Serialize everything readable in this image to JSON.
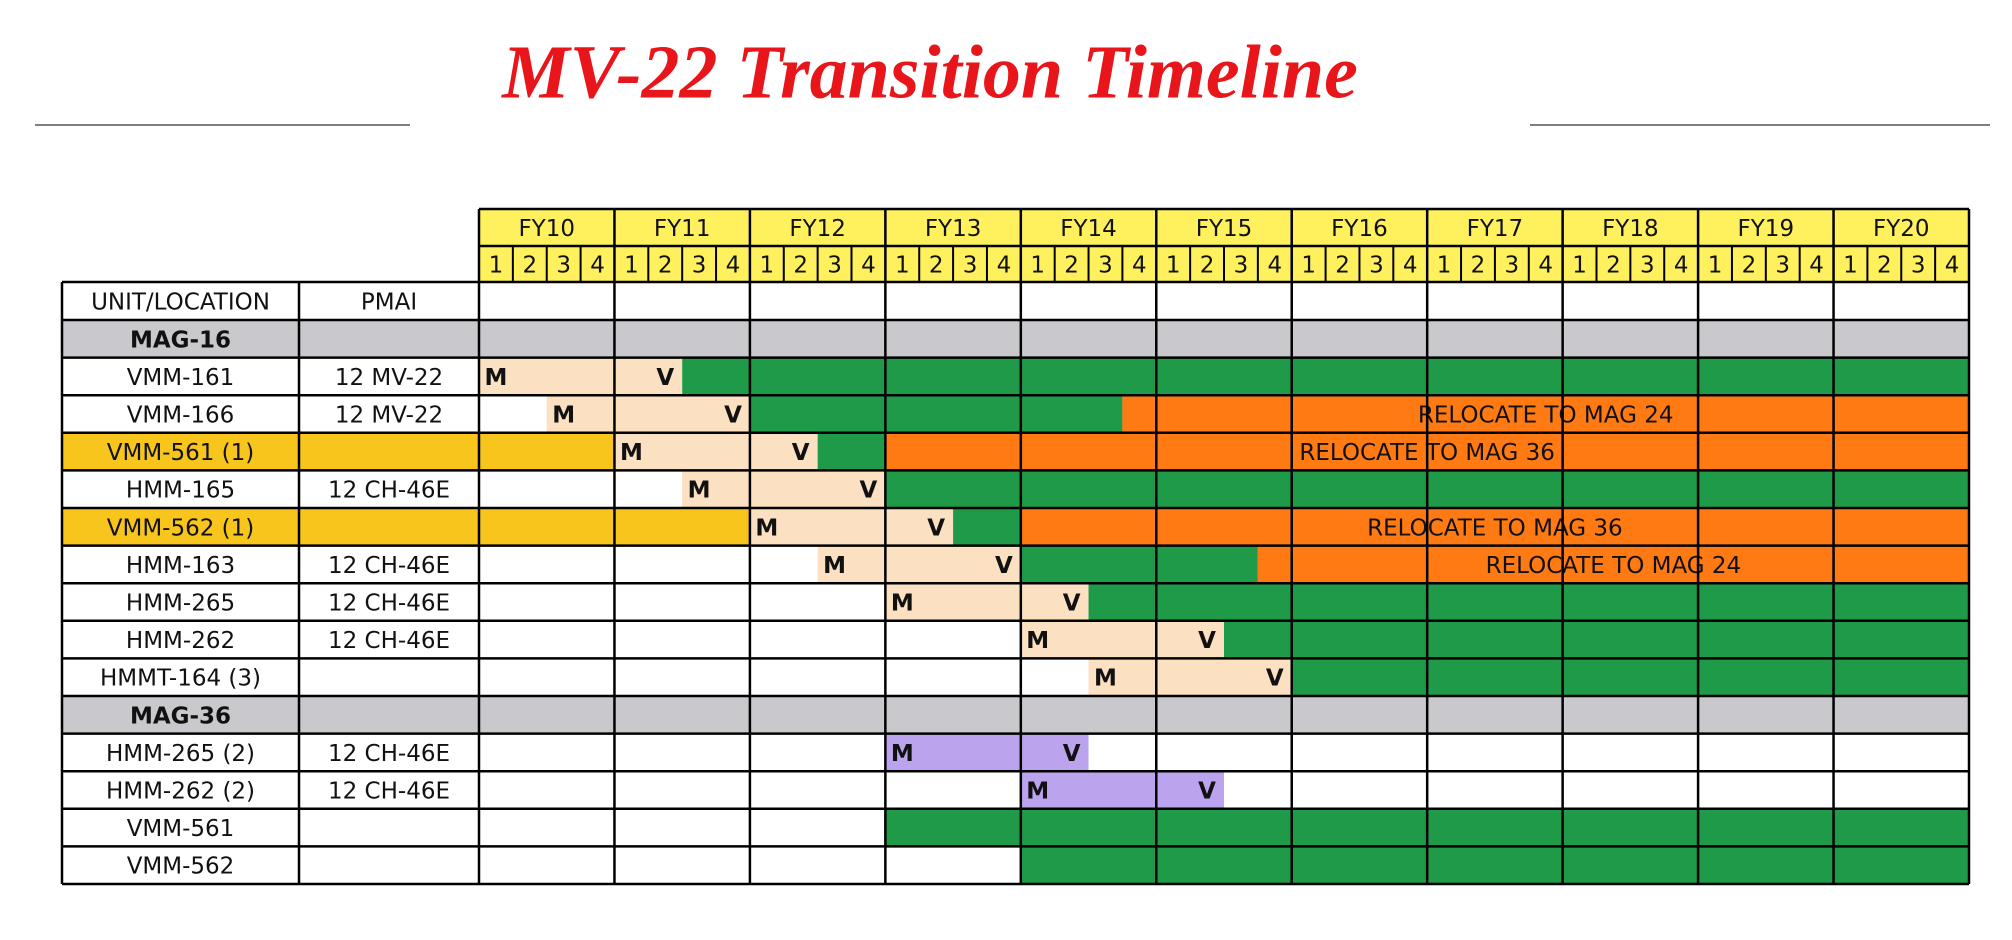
{
  "title": "MV-22 Transition Timeline",
  "header": {
    "unit": "UNIT/LOCATION",
    "pmai": "PMAI"
  },
  "fiscal_years": [
    "FY10",
    "FY11",
    "FY12",
    "FY13",
    "FY14",
    "FY15",
    "FY16",
    "FY17",
    "FY18",
    "FY19",
    "FY20"
  ],
  "quarters": [
    "1",
    "2",
    "3",
    "4"
  ],
  "rows": [
    {
      "unit": "MAG-16",
      "color": "#c9c9cd"
    },
    {
      "unit": "VMM-161",
      "pmai": "12 MV-22",
      "segments": [
        {
          "start": 0,
          "end": 5,
          "color": "#fbe0c2"
        },
        {
          "start": 6,
          "end": 43,
          "color": "#1f9a48"
        }
      ],
      "labels": [
        {
          "quarter": 0,
          "text": "M"
        },
        {
          "quarter": 5,
          "text": "V"
        }
      ]
    },
    {
      "unit": "VMM-166",
      "pmai": "12 MV-22",
      "segments": [
        {
          "start": 2,
          "end": 7,
          "color": "#fbe0c2"
        },
        {
          "start": 8,
          "end": 18,
          "color": "#1f9a48"
        },
        {
          "start": 19,
          "end": 43,
          "color": "#ff7a12",
          "text": "RELOCATE TO MAG 24"
        }
      ],
      "labels": [
        {
          "quarter": 2,
          "text": "M"
        },
        {
          "quarter": 7,
          "text": "V"
        }
      ]
    },
    {
      "unit": "VMM-561 (1)",
      "highlight": "#f8c51c",
      "segments": [
        {
          "start": 0,
          "end": 3,
          "color": "#f8c51c"
        },
        {
          "start": 4,
          "end": 9,
          "color": "#fbe0c2"
        },
        {
          "start": 10,
          "end": 11,
          "color": "#1f9a48"
        },
        {
          "start": 12,
          "end": 43,
          "color": "#ff7a12",
          "text": "RELOCATE TO MAG 36"
        }
      ],
      "labels": [
        {
          "quarter": 4,
          "text": "M"
        },
        {
          "quarter": 9,
          "text": "V"
        }
      ]
    },
    {
      "unit": "HMM-165",
      "pmai": "12 CH-46E",
      "segments": [
        {
          "start": 6,
          "end": 11,
          "color": "#fbe0c2"
        },
        {
          "start": 12,
          "end": 43,
          "color": "#1f9a48"
        }
      ],
      "labels": [
        {
          "quarter": 6,
          "text": "M"
        },
        {
          "quarter": 11,
          "text": "V"
        }
      ]
    },
    {
      "unit": "VMM-562 (1)",
      "highlight": "#f8c51c",
      "segments": [
        {
          "start": 0,
          "end": 7,
          "color": "#f8c51c"
        },
        {
          "start": 8,
          "end": 13,
          "color": "#fbe0c2"
        },
        {
          "start": 14,
          "end": 15,
          "color": "#1f9a48"
        },
        {
          "start": 16,
          "end": 43,
          "color": "#ff7a12",
          "text": "RELOCATE TO MAG 36"
        }
      ],
      "labels": [
        {
          "quarter": 8,
          "text": "M"
        },
        {
          "quarter": 13,
          "text": "V"
        }
      ]
    },
    {
      "unit": "HMM-163",
      "pmai": "12 CH-46E",
      "segments": [
        {
          "start": 10,
          "end": 15,
          "color": "#fbe0c2"
        },
        {
          "start": 16,
          "end": 22,
          "color": "#1f9a48"
        },
        {
          "start": 23,
          "end": 43,
          "color": "#ff7a12",
          "text": "RELOCATE TO MAG 24"
        }
      ],
      "labels": [
        {
          "quarter": 10,
          "text": "M"
        },
        {
          "quarter": 15,
          "text": "V"
        }
      ]
    },
    {
      "unit": "HMM-265",
      "pmai": "12 CH-46E",
      "segments": [
        {
          "start": 12,
          "end": 17,
          "color": "#fbe0c2"
        },
        {
          "start": 18,
          "end": 43,
          "color": "#1f9a48"
        }
      ],
      "labels": [
        {
          "quarter": 12,
          "text": "M"
        },
        {
          "quarter": 17,
          "text": "V"
        }
      ]
    },
    {
      "unit": "HMM-262",
      "pmai": "12 CH-46E",
      "segments": [
        {
          "start": 16,
          "end": 21,
          "color": "#fbe0c2"
        },
        {
          "start": 22,
          "end": 43,
          "color": "#1f9a48"
        }
      ],
      "labels": [
        {
          "quarter": 16,
          "text": "M"
        },
        {
          "quarter": 21,
          "text": "V"
        }
      ]
    },
    {
      "unit": "HMMT-164 (3)",
      "segments": [
        {
          "start": 18,
          "end": 23,
          "color": "#fbe0c2"
        },
        {
          "start": 24,
          "end": 43,
          "color": "#1f9a48"
        }
      ],
      "labels": [
        {
          "quarter": 18,
          "text": "M"
        },
        {
          "quarter": 23,
          "text": "V"
        }
      ]
    },
    {
      "unit": "MAG-36",
      "color": "#c9c9cd"
    },
    {
      "unit": "HMM-265 (2)",
      "pmai": "12 CH-46E",
      "segments": [
        {
          "start": 12,
          "end": 17,
          "color": "#bba3ee"
        }
      ],
      "labels": [
        {
          "quarter": 12,
          "text": "M"
        },
        {
          "quarter": 17,
          "text": "V"
        }
      ]
    },
    {
      "unit": "HMM-262 (2)",
      "pmai": "12 CH-46E",
      "segments": [
        {
          "start": 16,
          "end": 21,
          "color": "#bba3ee"
        }
      ],
      "labels": [
        {
          "quarter": 16,
          "text": "M"
        },
        {
          "quarter": 21,
          "text": "V"
        }
      ]
    },
    {
      "unit": "VMM-561",
      "segments": [
        {
          "start": 12,
          "end": 43,
          "color": "#1f9a48"
        }
      ]
    },
    {
      "unit": "VMM-562",
      "segments": [
        {
          "start": 16,
          "end": 43,
          "color": "#1f9a48"
        }
      ]
    }
  ]
}
